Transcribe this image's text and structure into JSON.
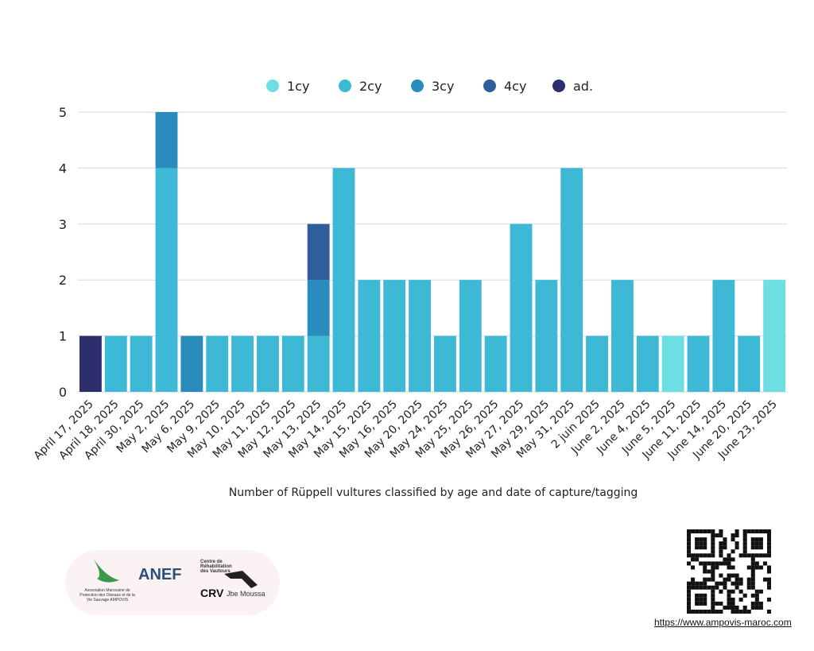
{
  "chart_data": {
    "type": "bar",
    "stacked": true,
    "title": "",
    "xlabel": "Number of Rüppell vultures classified by age and date of capture/tagging",
    "ylabel": "",
    "ylim": [
      0,
      5
    ],
    "yticks": [
      0,
      1,
      2,
      3,
      4,
      5
    ],
    "grid": true,
    "legend_position": "top-center",
    "categories": [
      "April 17, 2025",
      "April 18, 2025",
      "April 30, 2025",
      "May 2, 2025",
      "May 6, 2025",
      "May 9, 2025",
      "May 10, 2025",
      "May 11, 2025",
      "May 12, 2025",
      "May 13, 2025",
      "May 14, 2025",
      "May 15, 2025",
      "May 16, 2025",
      "May 20, 2025",
      "May 24, 2025",
      "May 25, 2025",
      "May 26, 2025",
      "May 27, 2025",
      "May 29, 2025",
      "May 31, 2025",
      "2 juin 2025",
      "June 2, 2025",
      "June 4, 2025",
      "June 5, 2025",
      "June 11, 2025",
      "June 14, 2025",
      "June 20, 2025",
      "June 23, 2025"
    ],
    "series": [
      {
        "name": "1cy",
        "color": "#6ddfe3",
        "values": [
          0,
          0,
          0,
          0,
          0,
          0,
          0,
          0,
          0,
          0,
          0,
          0,
          0,
          0,
          0,
          0,
          0,
          0,
          0,
          0,
          0,
          0,
          0,
          1,
          0,
          0,
          0,
          2
        ]
      },
      {
        "name": "2cy",
        "color": "#3db8d5",
        "values": [
          0,
          1,
          1,
          4,
          0,
          1,
          1,
          1,
          1,
          1,
          4,
          2,
          2,
          2,
          1,
          2,
          1,
          3,
          2,
          4,
          1,
          2,
          1,
          0,
          1,
          2,
          1,
          0
        ]
      },
      {
        "name": "3cy",
        "color": "#2a8bbd",
        "values": [
          0,
          0,
          0,
          1,
          1,
          0,
          0,
          0,
          0,
          1,
          0,
          0,
          0,
          0,
          0,
          0,
          0,
          0,
          0,
          0,
          0,
          0,
          0,
          0,
          0,
          0,
          0,
          0
        ]
      },
      {
        "name": "4cy",
        "color": "#2e5e9c",
        "values": [
          0,
          0,
          0,
          0,
          0,
          0,
          0,
          0,
          0,
          1,
          0,
          0,
          0,
          0,
          0,
          0,
          0,
          0,
          0,
          0,
          0,
          0,
          0,
          0,
          0,
          0,
          0,
          0
        ]
      },
      {
        "name": "ad.",
        "color": "#2e2e6e",
        "values": [
          1,
          0,
          0,
          0,
          0,
          0,
          0,
          0,
          0,
          0,
          0,
          0,
          0,
          0,
          0,
          0,
          0,
          0,
          0,
          0,
          0,
          0,
          0,
          0,
          0,
          0,
          0,
          0
        ]
      }
    ]
  },
  "footer": {
    "url": "https://www.ampovis-maroc.com",
    "logos": [
      "Association Marocaine de Protection des Oiseaux et de la Vie Sauvage AMPOVIS",
      "ANEF",
      "Centre de Réhabilitation des Vautours",
      "CRV",
      "Jbe Moussa"
    ]
  }
}
